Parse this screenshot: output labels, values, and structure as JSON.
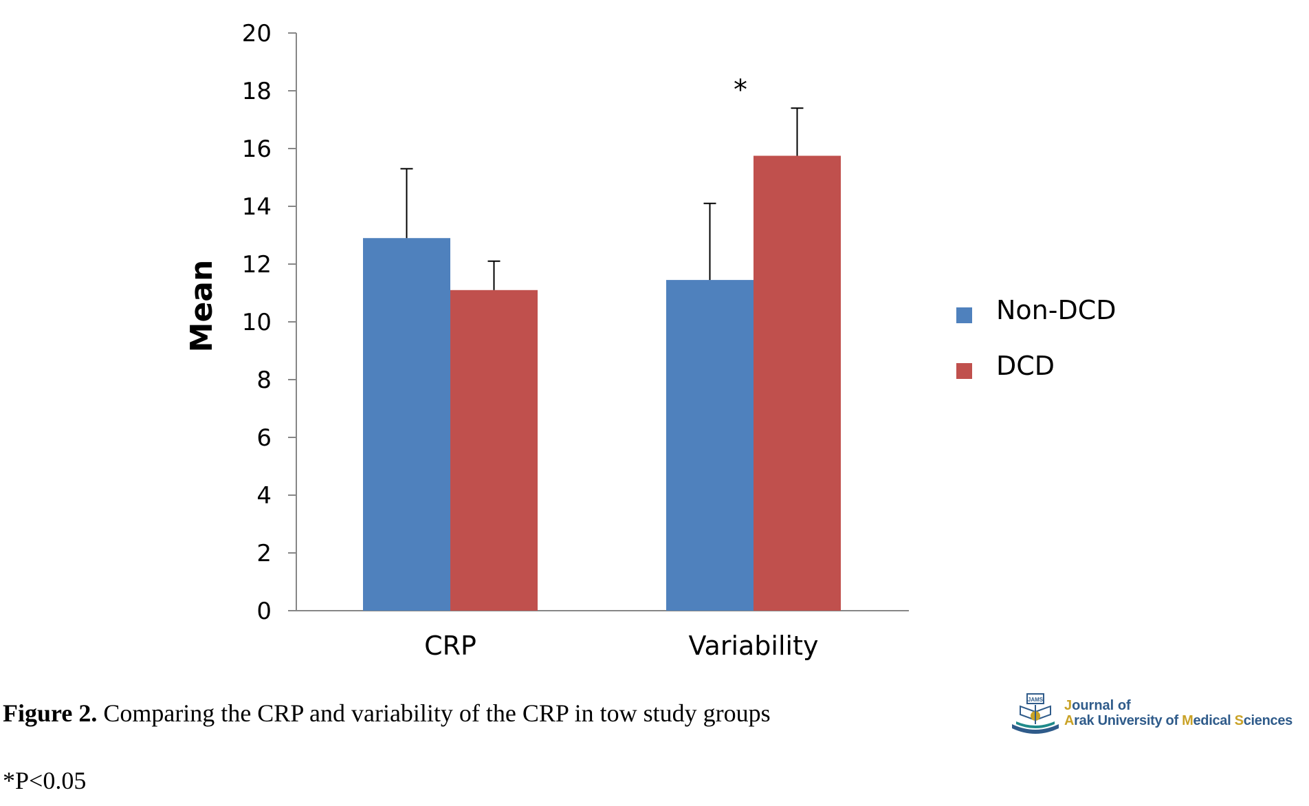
{
  "chart_data": {
    "type": "bar",
    "title": "",
    "xlabel": "",
    "ylabel": "Mean",
    "ylim": [
      0,
      20
    ],
    "yticks": [
      0,
      2,
      4,
      6,
      8,
      10,
      12,
      14,
      16,
      18,
      20
    ],
    "categories": [
      "CRP",
      "Variability"
    ],
    "series": [
      {
        "name": "Non-DCD",
        "color": "#4f81bd",
        "values": [
          12.9,
          11.45
        ],
        "error_upper": [
          2.4,
          2.65
        ]
      },
      {
        "name": "DCD",
        "color": "#c0504d",
        "values": [
          11.1,
          15.75
        ],
        "error_upper": [
          1.0,
          1.65
        ]
      }
    ],
    "significance": [
      {
        "category": "Variability",
        "mark": "*"
      }
    ],
    "grid": false,
    "legend_position": "right"
  },
  "caption": {
    "label": "Figure 2.",
    "text": " Comparing the CRP and variability of the CRP in tow study groups"
  },
  "footnote": "*P<0.05",
  "journal_logo": {
    "line1": "Journal of",
    "line2": "Arak University of Medical Sciences",
    "emblem_text": "JAMS"
  }
}
